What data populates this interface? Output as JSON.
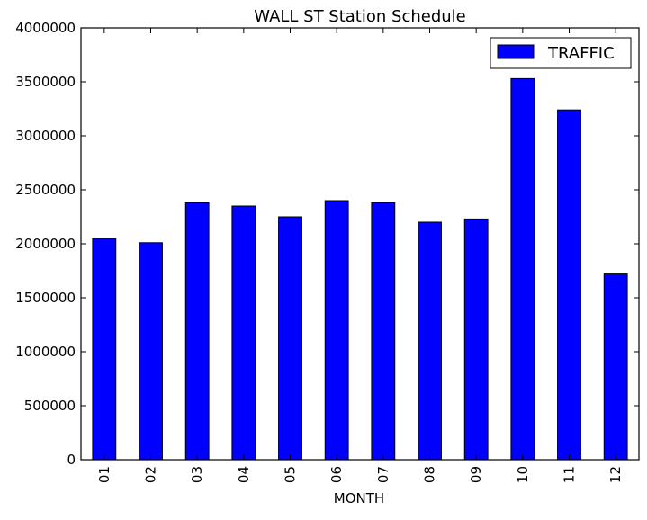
{
  "chart_data": {
    "type": "bar",
    "title": "WALL ST Station Schedule",
    "xlabel": "MONTH",
    "ylabel": "",
    "categories": [
      "01",
      "02",
      "03",
      "04",
      "05",
      "06",
      "07",
      "08",
      "09",
      "10",
      "11",
      "12"
    ],
    "series": [
      {
        "name": "TRAFFIC",
        "color": "#0000ff",
        "values": [
          2050000,
          2010000,
          2380000,
          2350000,
          2250000,
          2400000,
          2380000,
          2200000,
          2230000,
          3530000,
          3240000,
          1720000
        ]
      }
    ],
    "ylim": [
      0,
      4000000
    ],
    "yticks": [
      "0",
      "500000",
      "1000000",
      "1500000",
      "2000000",
      "2500000",
      "3000000",
      "3500000",
      "4000000"
    ],
    "grid": false,
    "legend_position": "top-right"
  }
}
